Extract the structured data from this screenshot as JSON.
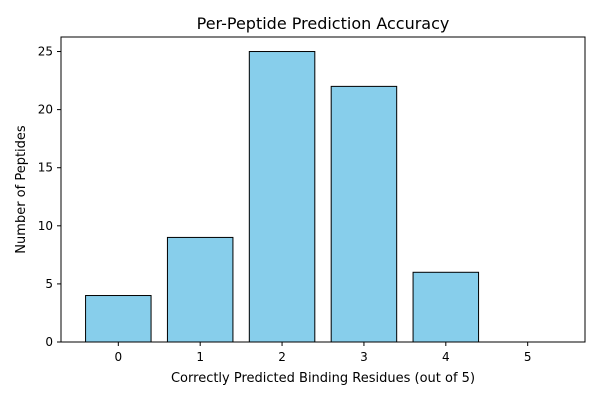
{
  "chart_data": {
    "type": "bar",
    "title": "Per-Peptide Prediction Accuracy",
    "xlabel": "Correctly Predicted Binding Residues (out of 5)",
    "ylabel": "Number of Peptides",
    "categories": [
      "0",
      "1",
      "2",
      "3",
      "4",
      "5"
    ],
    "values": [
      4,
      9,
      25,
      22,
      6,
      0
    ],
    "ylim": [
      0,
      26.25
    ],
    "yticks": [
      0,
      5,
      10,
      15,
      20,
      25
    ],
    "grid": false,
    "bar_color": "#87ceeb",
    "edge_color": "#000000"
  }
}
